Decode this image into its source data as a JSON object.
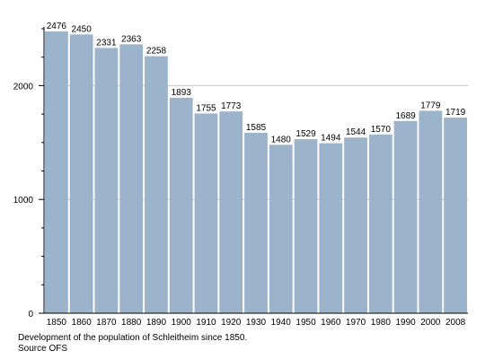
{
  "chart_data": {
    "type": "bar",
    "categories": [
      "1850",
      "1860",
      "1870",
      "1880",
      "1890",
      "1900",
      "1910",
      "1920",
      "1930",
      "1940",
      "1950",
      "1960",
      "1970",
      "1980",
      "1990",
      "2000",
      "2008"
    ],
    "values": [
      2476,
      2450,
      2331,
      2363,
      2258,
      1893,
      1755,
      1773,
      1585,
      1480,
      1529,
      1494,
      1544,
      1570,
      1689,
      1779,
      1719
    ],
    "ylim": [
      0,
      2500
    ],
    "yticks": [
      0,
      1000,
      2000
    ],
    "grid": true,
    "bar_color": "#9cb3cc",
    "grid_color": "#c8c8c8",
    "axis_color": "#000000"
  },
  "caption": {
    "line1": "Development of the population of Schleitheim since 1850.",
    "line2": "Source OFS"
  }
}
